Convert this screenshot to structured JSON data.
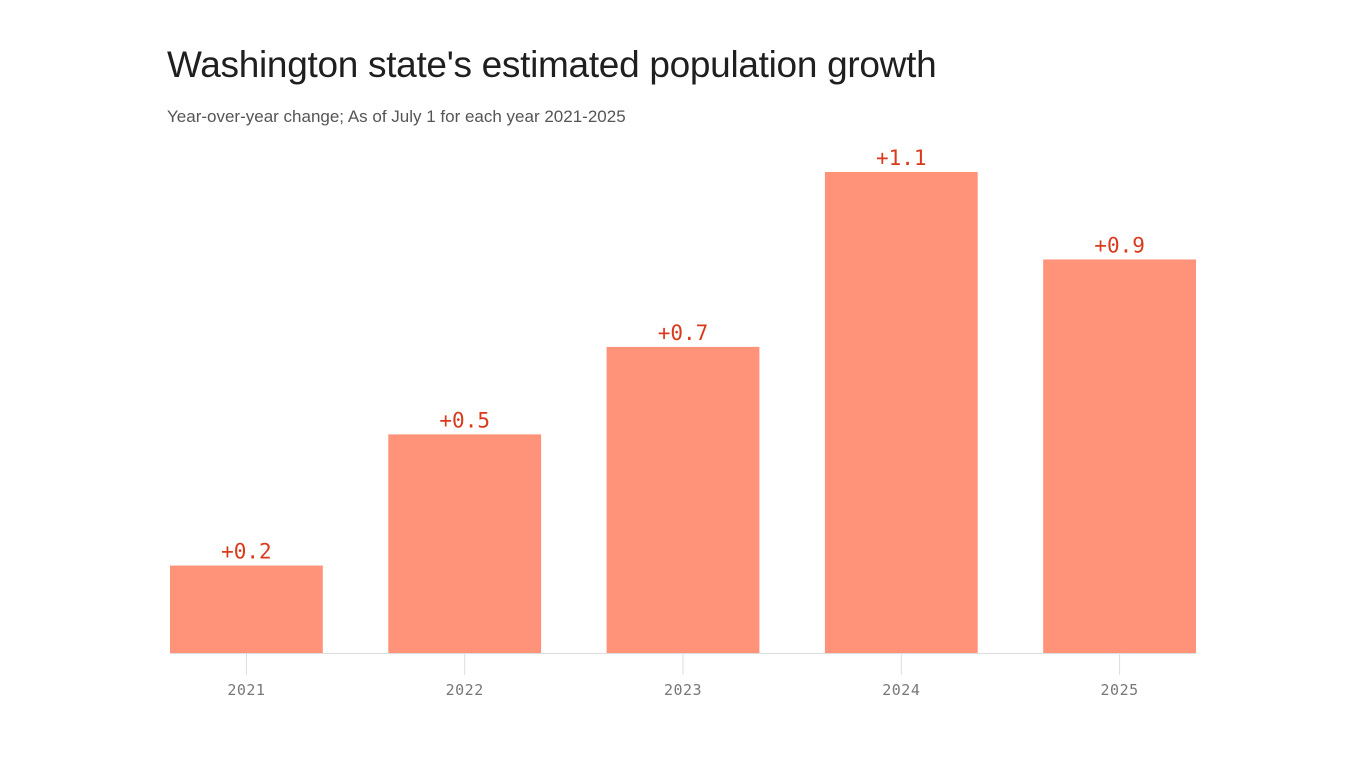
{
  "chart_data": {
    "type": "bar",
    "title": "Washington state's estimated population growth",
    "subtitle": "Year-over-year change; As of July 1 for each year 2021-2025",
    "categories": [
      "2021",
      "2022",
      "2023",
      "2024",
      "2025"
    ],
    "values": [
      0.2,
      0.5,
      0.7,
      1.1,
      0.9
    ],
    "value_labels": [
      "+0.2",
      "+0.5",
      "+0.7",
      "+1.1",
      "+0.9"
    ],
    "ylim": [
      0,
      1.1
    ],
    "grid": false,
    "legend": "none",
    "colors": {
      "bar": "#ff937a",
      "value_label": "#d93a1c",
      "axis": "#dddddd",
      "tick_label": "#777777"
    }
  }
}
